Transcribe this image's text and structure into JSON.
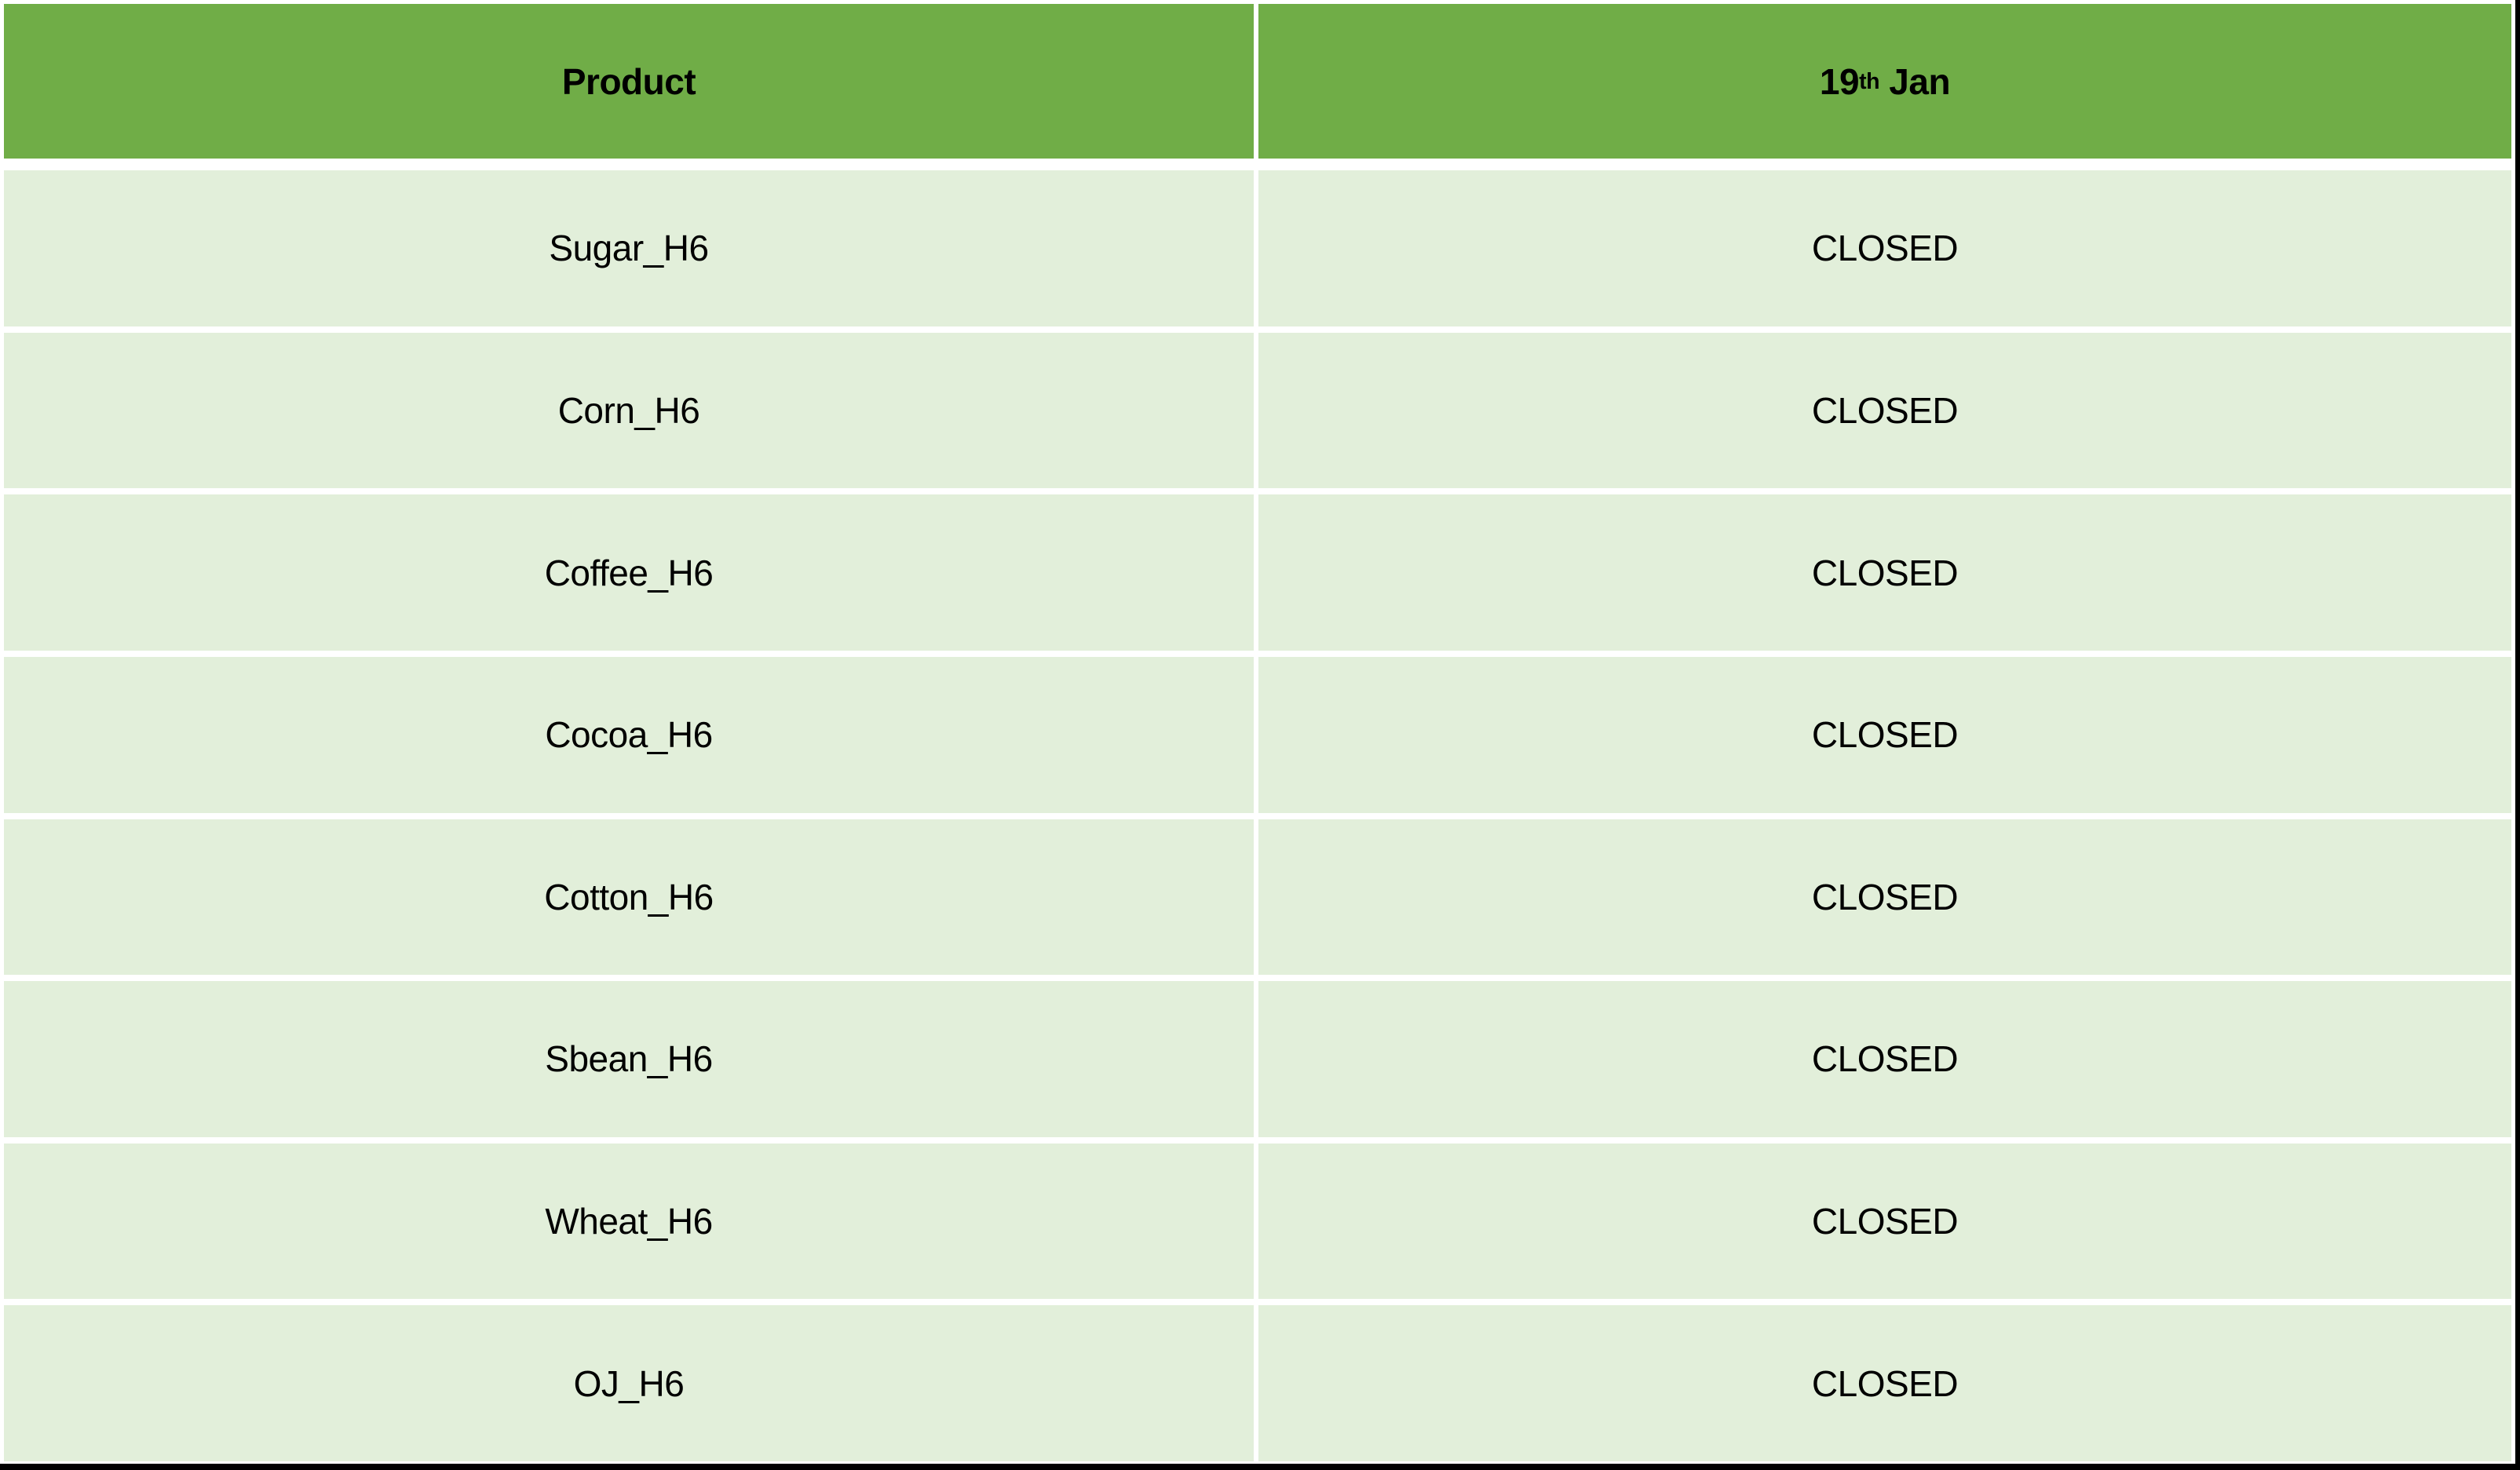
{
  "colors": {
    "header_bg": "#70AD47",
    "row_bg": "#E2EFDA",
    "divider_white": "#FFFFFF",
    "edge_black": "#000000",
    "text": "#000000"
  },
  "table": {
    "header": {
      "product_label": "Product",
      "date_day": "19",
      "date_ordinal": "th",
      "date_rest": " Jan"
    },
    "rows": [
      {
        "product": "Sugar_H6",
        "status": "CLOSED"
      },
      {
        "product": "Corn_H6",
        "status": "CLOSED"
      },
      {
        "product": "Coffee_H6",
        "status": "CLOSED"
      },
      {
        "product": "Cocoa_H6",
        "status": "CLOSED"
      },
      {
        "product": "Cotton_H6",
        "status": "CLOSED"
      },
      {
        "product": "Sbean_H6",
        "status": "CLOSED"
      },
      {
        "product": "Wheat_H6",
        "status": "CLOSED"
      },
      {
        "product": "OJ_H6",
        "status": "CLOSED"
      }
    ]
  },
  "chart_data": {
    "type": "table",
    "title": "",
    "columns": [
      "Product",
      "19th Jan"
    ],
    "rows": [
      [
        "Sugar_H6",
        "CLOSED"
      ],
      [
        "Corn_H6",
        "CLOSED"
      ],
      [
        "Coffee_H6",
        "CLOSED"
      ],
      [
        "Cocoa_H6",
        "CLOSED"
      ],
      [
        "Cotton_H6",
        "CLOSED"
      ],
      [
        "Sbean_H6",
        "CLOSED"
      ],
      [
        "Wheat_H6",
        "CLOSED"
      ],
      [
        "OJ_H6",
        "CLOSED"
      ]
    ]
  }
}
